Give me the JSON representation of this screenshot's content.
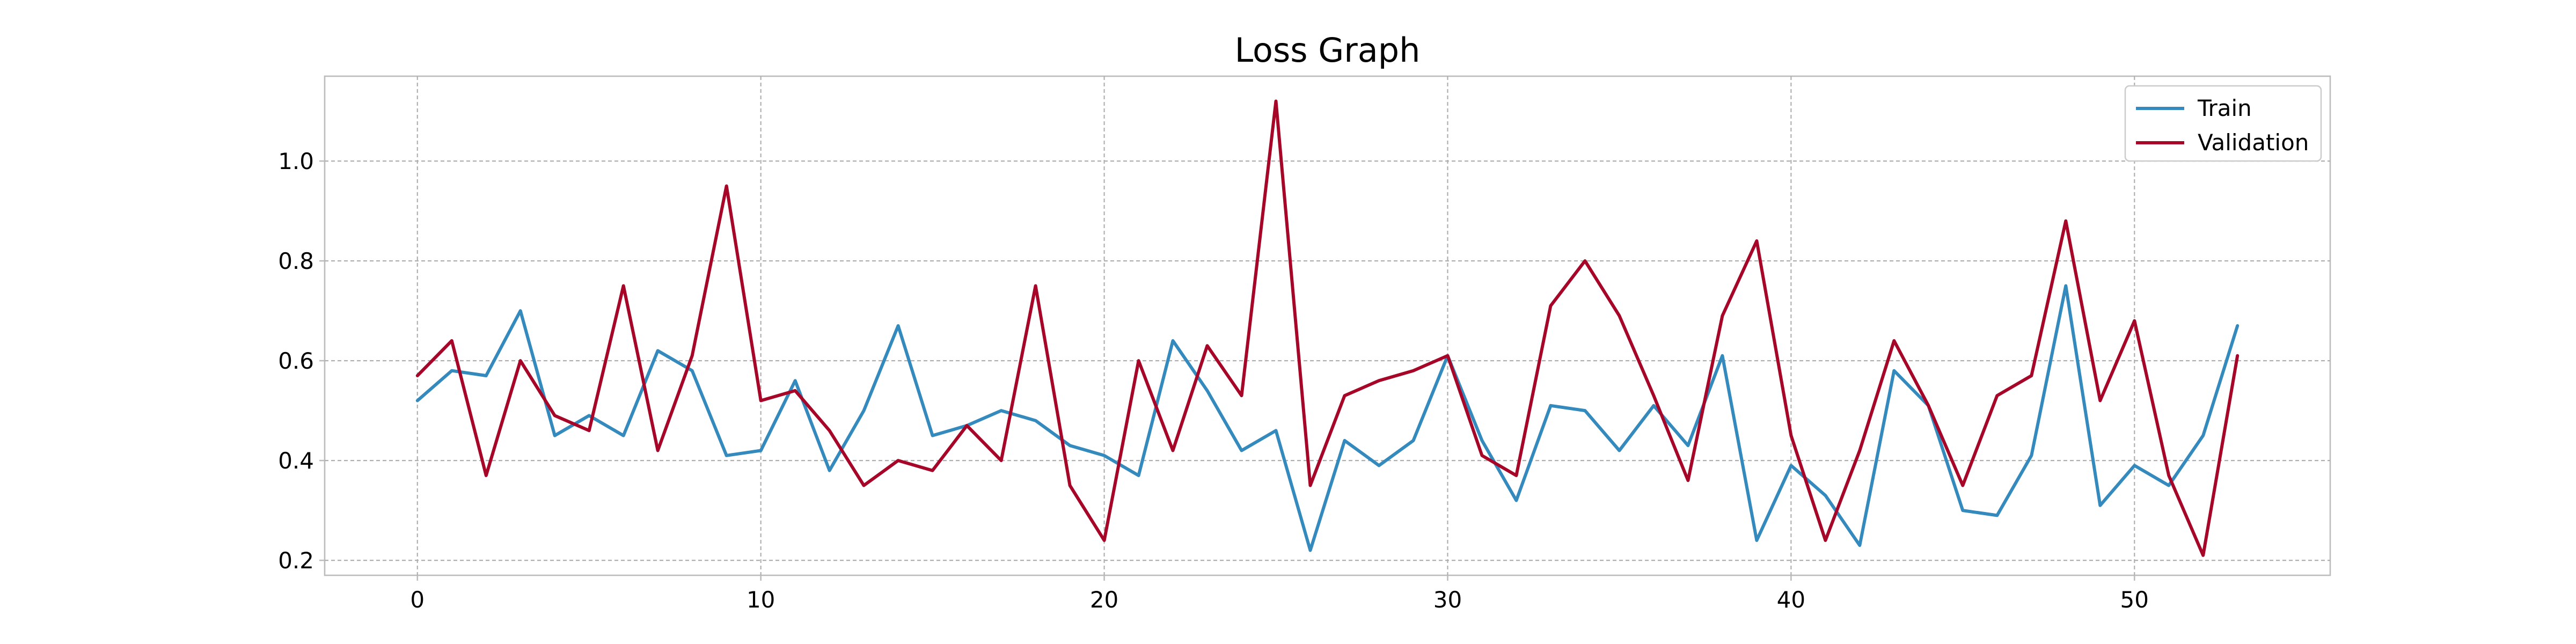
{
  "chart_data": {
    "type": "line",
    "title": "Loss Graph",
    "xlabel": "",
    "ylabel": "",
    "xlim": [
      -2.7,
      55.7
    ],
    "ylim": [
      0.17,
      1.17
    ],
    "xticks": [
      0,
      10,
      20,
      30,
      40,
      50
    ],
    "xtick_labels": [
      "0",
      "10",
      "20",
      "30",
      "40",
      "50"
    ],
    "yticks": [
      0.2,
      0.4,
      0.6,
      0.8,
      1.0
    ],
    "ytick_labels": [
      "0.2",
      "0.4",
      "0.6",
      "0.8",
      "1.0"
    ],
    "grid": true,
    "legend_position": "top-right",
    "series": [
      {
        "name": "Train",
        "color": "#348abd",
        "x": [
          0,
          1,
          2,
          3,
          4,
          5,
          6,
          7,
          8,
          9,
          10,
          11,
          12,
          13,
          14,
          15,
          16,
          17,
          18,
          19,
          20,
          21,
          22,
          23,
          24,
          25,
          26,
          27,
          28,
          29,
          30,
          31,
          32,
          33,
          34,
          35,
          36,
          37,
          38,
          39,
          40,
          41,
          42,
          43,
          44,
          45,
          46,
          47,
          48,
          49,
          50,
          51,
          52,
          53
        ],
        "values": [
          0.52,
          0.58,
          0.57,
          0.7,
          0.45,
          0.49,
          0.45,
          0.62,
          0.58,
          0.41,
          0.42,
          0.56,
          0.38,
          0.5,
          0.67,
          0.45,
          0.47,
          0.5,
          0.48,
          0.43,
          0.41,
          0.37,
          0.64,
          0.54,
          0.42,
          0.46,
          0.22,
          0.44,
          0.39,
          0.44,
          0.61,
          0.44,
          0.32,
          0.51,
          0.5,
          0.42,
          0.51,
          0.43,
          0.61,
          0.24,
          0.39,
          0.33,
          0.23,
          0.58,
          0.51,
          0.3,
          0.29,
          0.41,
          0.75,
          0.31,
          0.39,
          0.35,
          0.45,
          0.67
        ]
      },
      {
        "name": "Validation",
        "color": "#a60628",
        "x": [
          0,
          1,
          2,
          3,
          4,
          5,
          6,
          7,
          8,
          9,
          10,
          11,
          12,
          13,
          14,
          15,
          16,
          17,
          18,
          19,
          20,
          21,
          22,
          23,
          24,
          25,
          26,
          27,
          28,
          29,
          30,
          31,
          32,
          33,
          34,
          35,
          36,
          37,
          38,
          39,
          40,
          41,
          42,
          43,
          44,
          45,
          46,
          47,
          48,
          49,
          50,
          51,
          52,
          53
        ],
        "values": [
          0.57,
          0.64,
          0.37,
          0.6,
          0.49,
          0.46,
          0.75,
          0.42,
          0.61,
          0.95,
          0.52,
          0.54,
          0.46,
          0.35,
          0.4,
          0.38,
          0.47,
          0.4,
          0.75,
          0.35,
          0.24,
          0.6,
          0.42,
          0.63,
          0.53,
          1.12,
          0.35,
          0.53,
          0.56,
          0.58,
          0.61,
          0.41,
          0.37,
          0.71,
          0.8,
          0.69,
          0.53,
          0.36,
          0.69,
          0.84,
          0.45,
          0.24,
          0.42,
          0.64,
          0.51,
          0.35,
          0.53,
          0.57,
          0.88,
          0.52,
          0.68,
          0.37,
          0.21,
          0.61
        ]
      }
    ]
  }
}
